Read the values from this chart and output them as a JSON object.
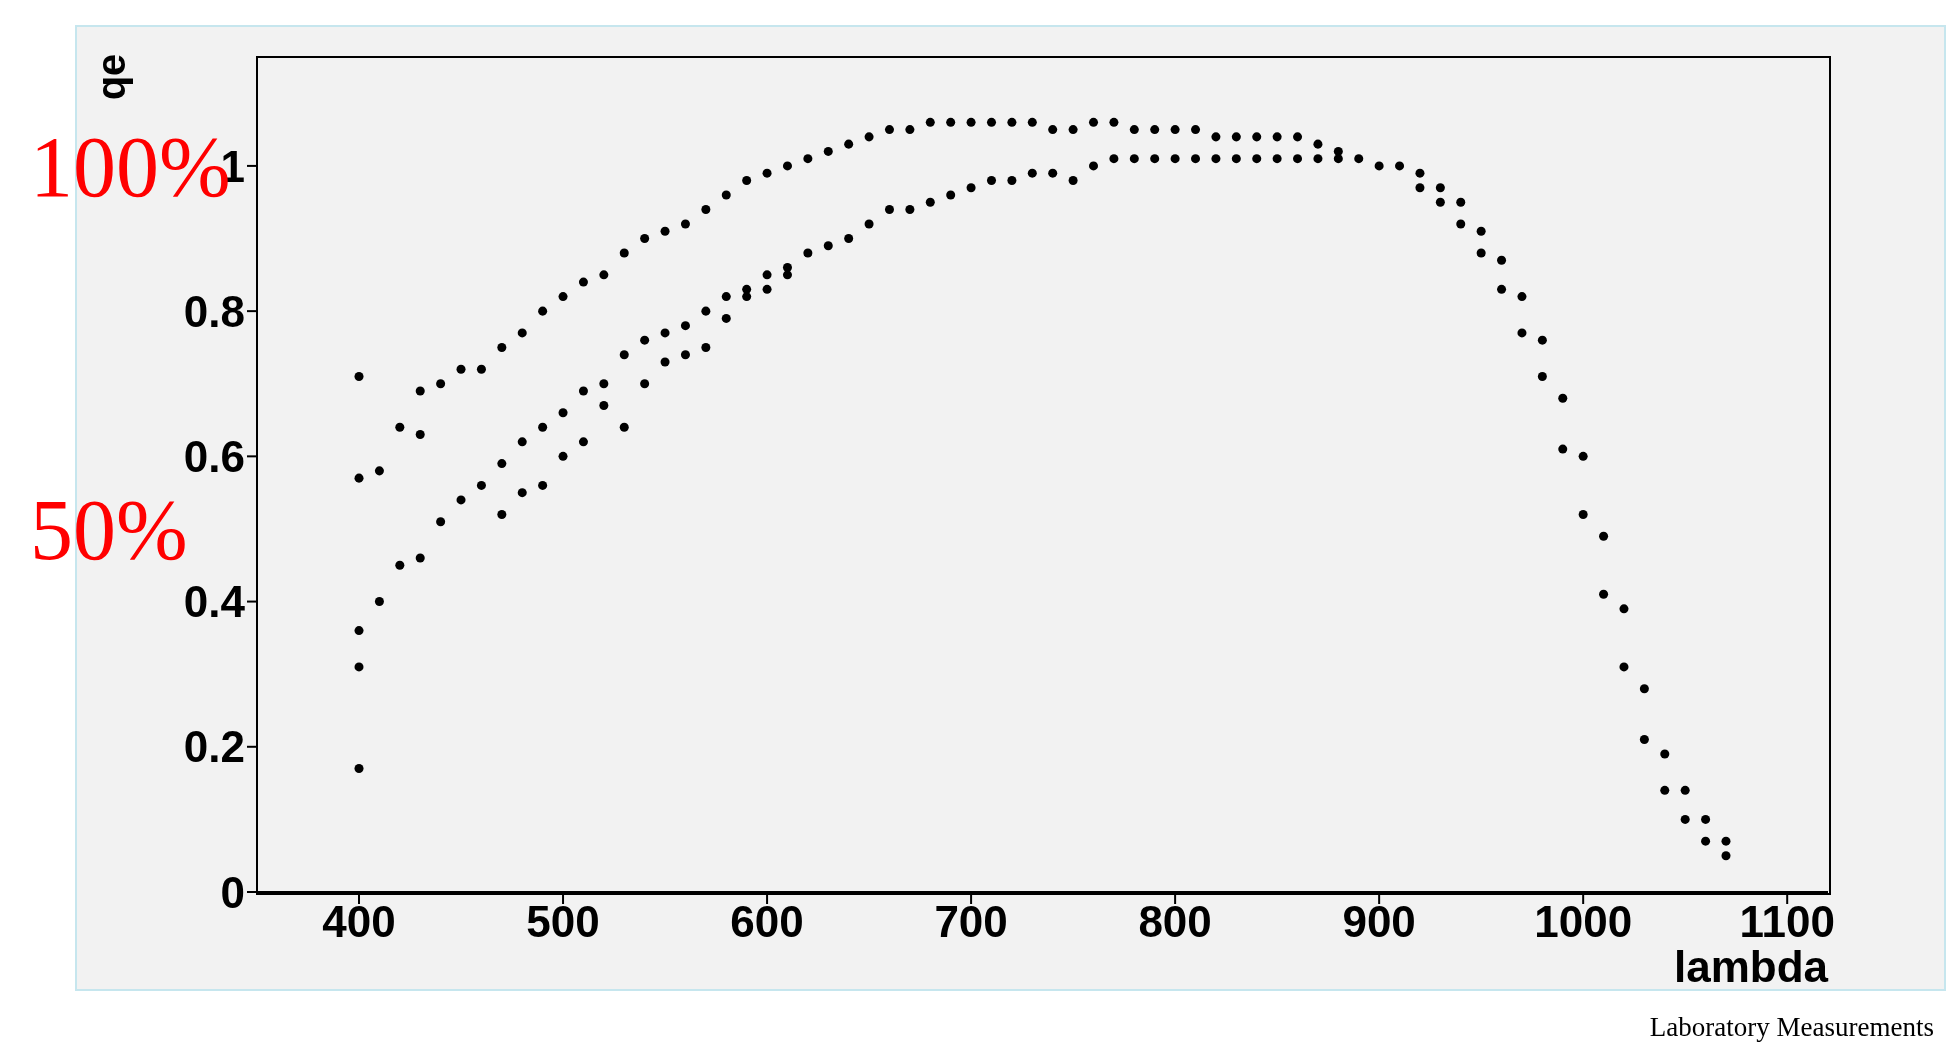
{
  "chart_data": {
    "type": "scatter",
    "xlabel": "lambda",
    "ylabel": "qe",
    "xlim": [
      350,
      1120
    ],
    "xticks": [
      400,
      500,
      600,
      700,
      800,
      900,
      1000,
      1100
    ],
    "ylim": [
      0,
      1.15
    ],
    "yticks": [
      0,
      0.2,
      0.4,
      0.6,
      0.8,
      1
    ],
    "marker": "circle",
    "grid": false,
    "legend": false,
    "annotations": [
      "100%",
      "50%",
      "Laboratory Measurements"
    ],
    "series": [
      {
        "color": "#000000",
        "x": [
          400,
          400,
          400,
          400,
          400,
          410,
          410,
          420,
          420,
          430,
          430,
          430,
          440,
          440,
          450,
          450,
          460,
          460,
          470,
          470,
          470,
          480,
          480,
          480,
          490,
          490,
          490,
          500,
          500,
          500,
          510,
          510,
          510,
          520,
          520,
          520,
          530,
          530,
          530,
          540,
          540,
          540,
          550,
          550,
          550,
          560,
          560,
          560,
          570,
          570,
          570,
          580,
          580,
          580,
          590,
          590,
          590,
          600,
          600,
          600,
          610,
          610,
          610,
          620,
          620,
          630,
          630,
          640,
          640,
          650,
          650,
          660,
          660,
          670,
          670,
          680,
          680,
          690,
          690,
          700,
          700,
          710,
          710,
          720,
          720,
          730,
          730,
          740,
          740,
          750,
          750,
          760,
          760,
          770,
          770,
          780,
          780,
          790,
          790,
          800,
          800,
          810,
          810,
          820,
          820,
          830,
          830,
          840,
          840,
          850,
          850,
          860,
          860,
          870,
          870,
          880,
          880,
          890,
          900,
          910,
          920,
          920,
          930,
          930,
          940,
          940,
          950,
          950,
          960,
          960,
          970,
          970,
          980,
          980,
          990,
          990,
          1000,
          1000,
          1010,
          1010,
          1020,
          1020,
          1030,
          1030,
          1040,
          1040,
          1050,
          1050,
          1060,
          1060,
          1070,
          1070
        ],
        "values": [
          0.71,
          0.57,
          0.36,
          0.31,
          0.17,
          0.58,
          0.4,
          0.64,
          0.45,
          0.69,
          0.63,
          0.46,
          0.7,
          0.51,
          0.72,
          0.54,
          0.72,
          0.56,
          0.75,
          0.59,
          0.52,
          0.77,
          0.62,
          0.55,
          0.8,
          0.64,
          0.56,
          0.82,
          0.66,
          0.6,
          0.84,
          0.69,
          0.62,
          0.85,
          0.7,
          0.67,
          0.88,
          0.74,
          0.64,
          0.9,
          0.76,
          0.7,
          0.91,
          0.77,
          0.73,
          0.92,
          0.78,
          0.74,
          0.94,
          0.8,
          0.75,
          0.96,
          0.82,
          0.79,
          0.98,
          0.83,
          0.82,
          0.99,
          0.85,
          0.83,
          1,
          0.86,
          0.85,
          1.01,
          0.88,
          1.02,
          0.89,
          1.03,
          0.9,
          1.04,
          0.92,
          1.05,
          0.94,
          1.05,
          0.94,
          1.06,
          0.95,
          1.06,
          0.96,
          1.06,
          0.97,
          1.06,
          0.98,
          1.06,
          0.98,
          1.06,
          0.99,
          1.05,
          0.99,
          1.05,
          0.98,
          1.06,
          1,
          1.06,
          1.01,
          1.05,
          1.01,
          1.05,
          1.01,
          1.05,
          1.01,
          1.05,
          1.01,
          1.04,
          1.01,
          1.04,
          1.01,
          1.04,
          1.01,
          1.04,
          1.01,
          1.04,
          1.01,
          1.03,
          1.01,
          1.02,
          1.01,
          1.01,
          1,
          1,
          0.99,
          0.97,
          0.97,
          0.95,
          0.95,
          0.92,
          0.91,
          0.88,
          0.87,
          0.83,
          0.82,
          0.77,
          0.76,
          0.71,
          0.68,
          0.61,
          0.6,
          0.52,
          0.49,
          0.41,
          0.39,
          0.31,
          0.28,
          0.21,
          0.19,
          0.14,
          0.14,
          0.1,
          0.1,
          0.07,
          0.07,
          0.05
        ]
      }
    ]
  }
}
